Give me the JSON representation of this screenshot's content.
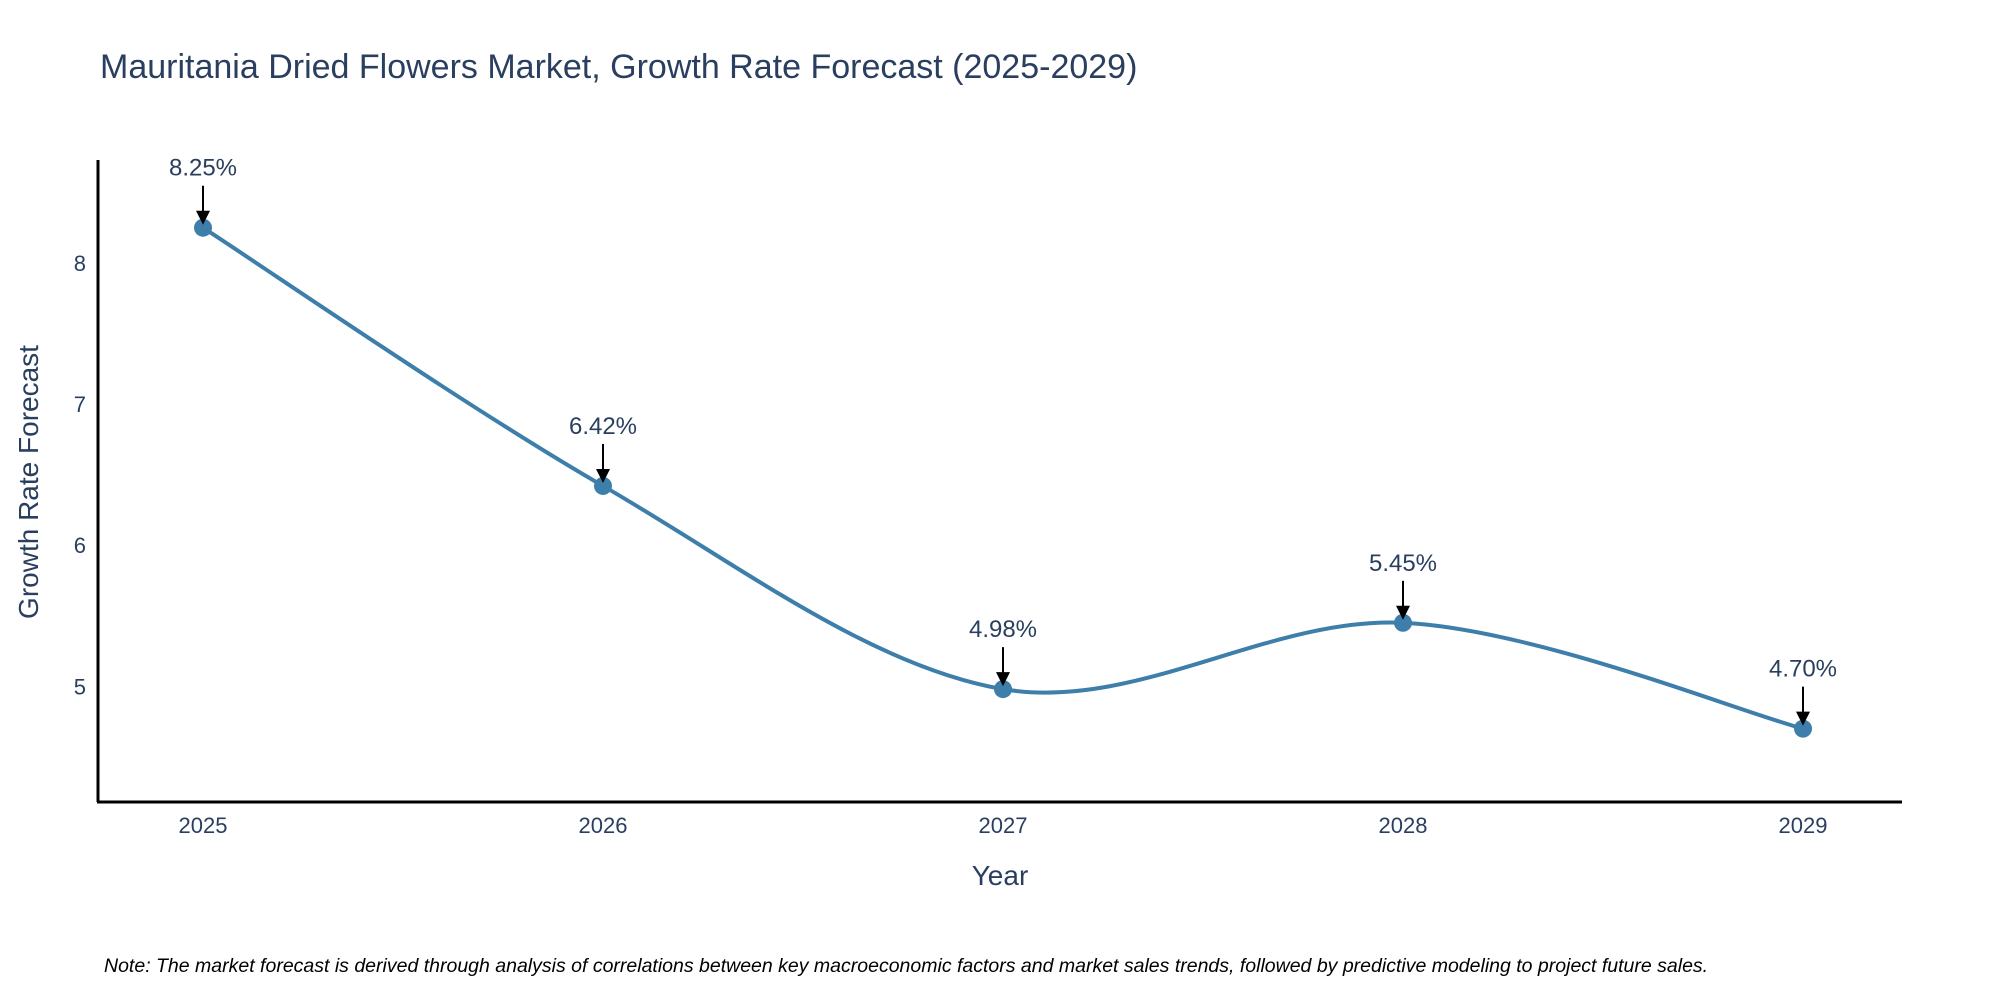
{
  "chart_data": {
    "type": "line",
    "title": "Mauritania Dried Flowers Market, Growth Rate Forecast (2025-2029)",
    "xlabel": "Year",
    "ylabel": "Growth Rate Forecast",
    "categories": [
      "2025",
      "2026",
      "2027",
      "2028",
      "2029"
    ],
    "series": [
      {
        "name": "Growth Rate Forecast",
        "values": [
          8.25,
          6.42,
          4.98,
          5.45,
          4.7
        ],
        "color": "#3d7eaa"
      }
    ],
    "data_labels": [
      "8.25%",
      "6.42%",
      "4.98%",
      "5.45%",
      "4.70%"
    ],
    "y_ticks": [
      5,
      6,
      7,
      8
    ],
    "ylim": [
      4.18,
      8.73
    ],
    "grid": false,
    "smoothing": "spline",
    "note": "Note: The market forecast is derived through analysis of correlations between key macroeconomic factors and market sales trends, followed by predictive modeling to project future sales.",
    "colors": {
      "line": "#3d7eaa",
      "marker": "#3d7eaa",
      "text": "#2a3f5f",
      "axis": "#000000",
      "arrow": "#000000"
    }
  }
}
